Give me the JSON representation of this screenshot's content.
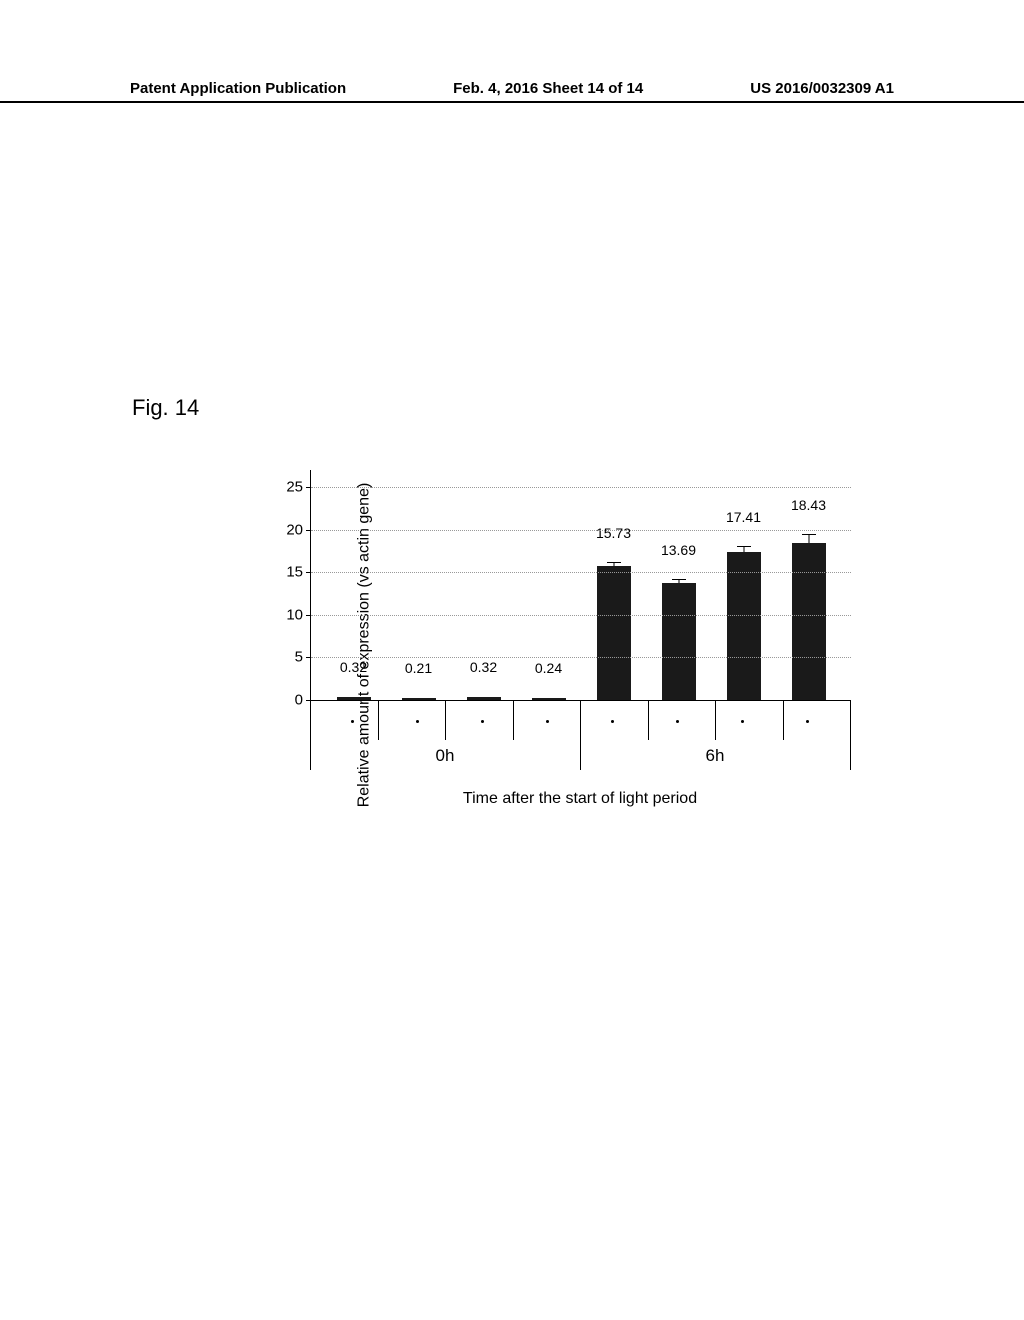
{
  "header": {
    "left": "Patent Application Publication",
    "middle": "Feb. 4, 2016   Sheet 14 of 14",
    "right": "US 2016/0032309 A1"
  },
  "figure_label": "Fig. 14",
  "chart": {
    "type": "bar",
    "ylabel": "Relative amount of expression (vs actin gene)",
    "xlabel": "Time after the start of light period",
    "ylim_max": 27,
    "yticks": [
      0,
      5,
      10,
      15,
      20,
      25
    ],
    "bar_color": "#1a1a1a",
    "grid_color": "#999999",
    "bars": [
      {
        "value": 0.32,
        "label": "0.32",
        "error": 0
      },
      {
        "value": 0.21,
        "label": "0.21",
        "error": 0
      },
      {
        "value": 0.32,
        "label": "0.32",
        "error": 0
      },
      {
        "value": 0.24,
        "label": "0.24",
        "error": 0
      },
      {
        "value": 15.73,
        "label": "15.73",
        "error": 0.4
      },
      {
        "value": 13.69,
        "label": "13.69",
        "error": 0.4
      },
      {
        "value": 17.41,
        "label": "17.41",
        "error": 0.5
      },
      {
        "value": 18.43,
        "label": "18.43",
        "error": 1.0
      }
    ],
    "groups": [
      {
        "label": "0h",
        "span": 4
      },
      {
        "label": "6h",
        "span": 4
      }
    ]
  }
}
